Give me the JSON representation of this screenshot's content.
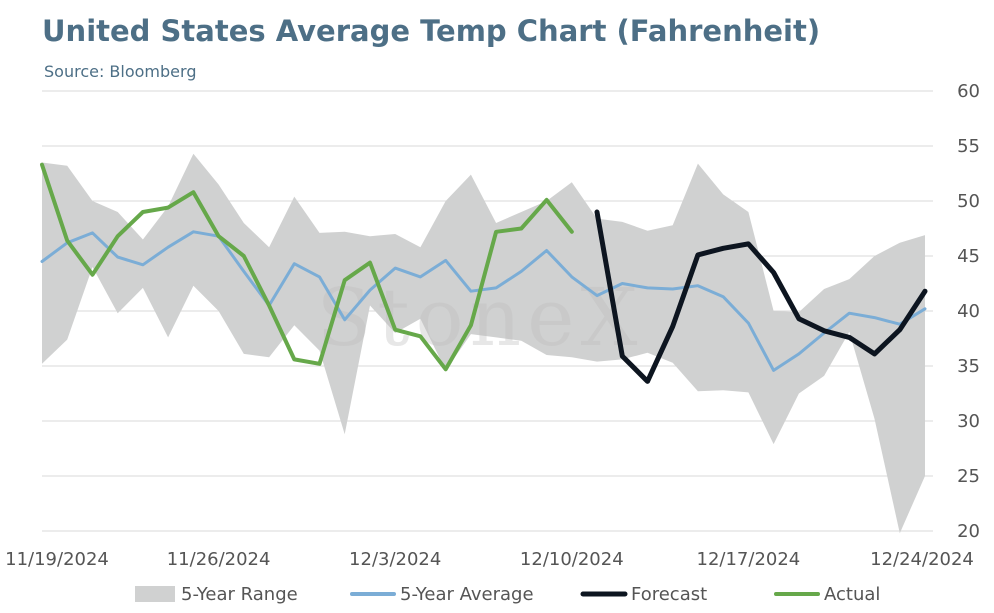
{
  "title": "United States Average Temp Chart (Fahrenheit)",
  "subtitle": "Source: Bloomberg",
  "watermark": "StoneX",
  "chart_data": {
    "type": "line",
    "x_tick_labels": [
      "11/19/2024",
      "11/26/2024",
      "12/3/2024",
      "12/10/2024",
      "12/17/2024",
      "12/24/2024"
    ],
    "x_range": [
      "11/19/2024",
      "12/24/2024"
    ],
    "ylim": [
      20,
      60
    ],
    "y_ticks": [
      20,
      25,
      30,
      35,
      40,
      45,
      50,
      55,
      60
    ],
    "y_axis_side": "right",
    "grid": "horizontal",
    "legend_position": "bottom",
    "range_band": {
      "name": "5-Year Range",
      "color": "#d0d1d1",
      "x": [
        "11/19/2024",
        "11/20/2024",
        "11/21/2024",
        "11/22/2024",
        "11/23/2024",
        "11/24/2024",
        "11/25/2024",
        "11/26/2024",
        "11/27/2024",
        "11/28/2024",
        "11/29/2024",
        "11/30/2024",
        "12/1/2024",
        "12/2/2024",
        "12/3/2024",
        "12/4/2024",
        "12/5/2024",
        "12/6/2024",
        "12/7/2024",
        "12/8/2024",
        "12/9/2024",
        "12/10/2024",
        "12/11/2024",
        "12/12/2024",
        "12/13/2024",
        "12/14/2024",
        "12/15/2024",
        "12/16/2024",
        "12/17/2024",
        "12/18/2024",
        "12/19/2024",
        "12/20/2024",
        "12/21/2024",
        "12/22/2024",
        "12/23/2024",
        "12/24/2024"
      ],
      "high": [
        53.5,
        53.2,
        50.0,
        49.0,
        46.5,
        49.5,
        54.3,
        51.5,
        48.0,
        45.8,
        50.4,
        47.1,
        47.2,
        46.8,
        47.0,
        45.8,
        50.0,
        52.4,
        48.0,
        49.0,
        50.0,
        51.7,
        48.4,
        48.1,
        47.3,
        47.8,
        53.4,
        50.6,
        49.0,
        40.0,
        39.9,
        42.0,
        42.9,
        45.0,
        46.2,
        46.9
      ],
      "low": [
        35.2,
        37.4,
        44.0,
        39.8,
        42.1,
        37.6,
        42.3,
        40.0,
        36.1,
        35.8,
        38.7,
        36.4,
        28.8,
        40.5,
        38.0,
        39.3,
        34.6,
        37.9,
        37.6,
        37.3,
        36.0,
        35.8,
        35.4,
        35.6,
        36.2,
        35.3,
        32.7,
        32.8,
        32.6,
        27.9,
        32.5,
        34.1,
        38.1,
        30.2,
        19.8,
        25.0
      ]
    },
    "series": [
      {
        "name": "5-Year Average",
        "color": "#7badd6",
        "width": 3,
        "x": [
          "11/19/2024",
          "11/20/2024",
          "11/21/2024",
          "11/22/2024",
          "11/23/2024",
          "11/24/2024",
          "11/25/2024",
          "11/26/2024",
          "11/27/2024",
          "11/28/2024",
          "11/29/2024",
          "11/30/2024",
          "12/1/2024",
          "12/2/2024",
          "12/3/2024",
          "12/4/2024",
          "12/5/2024",
          "12/6/2024",
          "12/7/2024",
          "12/8/2024",
          "12/9/2024",
          "12/10/2024",
          "12/11/2024",
          "12/12/2024",
          "12/13/2024",
          "12/14/2024",
          "12/15/2024",
          "12/16/2024",
          "12/17/2024",
          "12/18/2024",
          "12/19/2024",
          "12/20/2024",
          "12/21/2024",
          "12/22/2024",
          "12/23/2024",
          "12/24/2024"
        ],
        "values": [
          44.5,
          46.2,
          47.1,
          44.9,
          44.2,
          45.8,
          47.2,
          46.8,
          43.6,
          40.5,
          44.3,
          43.1,
          39.2,
          41.9,
          43.9,
          43.1,
          44.6,
          41.8,
          42.1,
          43.6,
          45.5,
          43.1,
          41.4,
          42.5,
          42.1,
          42.0,
          42.3,
          41.3,
          38.9,
          34.6,
          36.1,
          38.0,
          39.8,
          39.4,
          38.8,
          40.2
        ]
      },
      {
        "name": "Forecast",
        "color": "#0d1520",
        "width": 5,
        "x": [
          "12/11/2024",
          "12/12/2024",
          "12/13/2024",
          "12/14/2024",
          "12/15/2024",
          "12/16/2024",
          "12/17/2024",
          "12/18/2024",
          "12/19/2024",
          "12/20/2024",
          "12/21/2024",
          "12/22/2024",
          "12/23/2024",
          "12/24/2024"
        ],
        "values": [
          49.0,
          35.9,
          33.6,
          38.6,
          45.1,
          45.7,
          46.1,
          43.5,
          39.3,
          38.2,
          37.6,
          36.1,
          38.3,
          41.8
        ]
      },
      {
        "name": "Actual",
        "color": "#66a84a",
        "width": 4,
        "x": [
          "11/19/2024",
          "11/20/2024",
          "11/21/2024",
          "11/22/2024",
          "11/23/2024",
          "11/24/2024",
          "11/25/2024",
          "11/26/2024",
          "11/27/2024",
          "11/28/2024",
          "11/29/2024",
          "11/30/2024",
          "12/1/2024",
          "12/2/2024",
          "12/3/2024",
          "12/4/2024",
          "12/5/2024",
          "12/6/2024",
          "12/7/2024",
          "12/8/2024",
          "12/9/2024",
          "12/10/2024"
        ],
        "values": [
          53.3,
          46.4,
          43.3,
          46.8,
          49.0,
          49.4,
          50.8,
          46.8,
          45.0,
          40.5,
          35.6,
          35.2,
          42.8,
          44.4,
          38.3,
          37.7,
          34.7,
          38.7,
          47.2,
          47.5,
          50.1,
          47.2
        ]
      }
    ],
    "legend": [
      {
        "name": "5-Year Range",
        "kind": "band",
        "color": "#d0d1d1"
      },
      {
        "name": "5-Year Average",
        "kind": "line",
        "color": "#7badd6"
      },
      {
        "name": "Forecast",
        "kind": "line",
        "color": "#0d1520"
      },
      {
        "name": "Actual",
        "kind": "line",
        "color": "#66a84a"
      }
    ]
  }
}
